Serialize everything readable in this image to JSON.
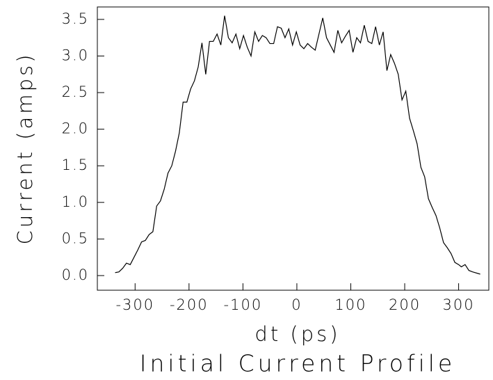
{
  "chart_data": {
    "type": "line",
    "title": "Initial Current Profile",
    "x_label": "dt (ps)",
    "y_label": "Current (amps)",
    "xlim": [
      -370,
      356
    ],
    "ylim": [
      -0.2,
      3.67
    ],
    "xticks": [
      -300,
      -200,
      -100,
      0,
      100,
      200,
      300
    ],
    "yticks": [
      {
        "value": 0,
        "label": "0.0"
      },
      {
        "value": 0.5,
        "label": "0.5"
      },
      {
        "value": 1,
        "label": "1.0"
      },
      {
        "value": 1.5,
        "label": "1.5"
      },
      {
        "value": 2,
        "label": "2.0"
      },
      {
        "value": 2.5,
        "label": "2.5"
      },
      {
        "value": 3,
        "label": "3.0"
      },
      {
        "value": 3.5,
        "label": "3.5"
      }
    ],
    "x": [
      -337,
      -330,
      -323,
      -316,
      -309,
      -302,
      -295,
      -288,
      -281,
      -274,
      -267,
      -260,
      -253,
      -246,
      -239,
      -232,
      -225,
      -218,
      -211,
      -204,
      -197,
      -190,
      -183,
      -176,
      -169,
      -162,
      -155,
      -148,
      -141,
      -134,
      -127,
      -120,
      -113,
      -106,
      -99,
      -92,
      -85,
      -78,
      -71,
      -64,
      -57,
      -50,
      -43,
      -36,
      -29,
      -22,
      -15,
      -8,
      -1,
      6,
      13,
      20,
      27,
      34,
      41,
      48,
      55,
      62,
      69,
      76,
      83,
      90,
      97,
      104,
      111,
      118,
      125,
      132,
      139,
      146,
      153,
      160,
      167,
      174,
      181,
      188,
      195,
      202,
      209,
      216,
      223,
      230,
      237,
      244,
      251,
      258,
      265,
      272,
      279,
      286,
      293,
      300,
      305,
      312,
      319,
      326,
      340
    ],
    "series": [
      {
        "name": "current",
        "color": "#000000",
        "values": [
          0.04,
          0.05,
          0.1,
          0.17,
          0.15,
          0.25,
          0.35,
          0.46,
          0.48,
          0.56,
          0.6,
          0.95,
          1.02,
          1.18,
          1.4,
          1.5,
          1.7,
          1.95,
          2.37,
          2.37,
          2.55,
          2.66,
          2.85,
          3.18,
          2.75,
          3.2,
          3.2,
          3.3,
          3.15,
          3.55,
          3.25,
          3.18,
          3.3,
          3.1,
          3.28,
          3.12,
          3.0,
          3.33,
          3.2,
          3.28,
          3.25,
          3.17,
          3.17,
          3.4,
          3.38,
          3.25,
          3.37,
          3.15,
          3.33,
          3.15,
          3.1,
          3.17,
          3.12,
          3.08,
          3.3,
          3.52,
          3.25,
          3.15,
          3.05,
          3.35,
          3.18,
          3.27,
          3.35,
          3.05,
          3.25,
          3.18,
          3.42,
          3.2,
          3.17,
          3.4,
          3.15,
          3.33,
          2.8,
          3.02,
          2.9,
          2.75,
          2.4,
          2.52,
          2.15,
          1.98,
          1.8,
          1.48,
          1.35,
          1.05,
          0.93,
          0.82,
          0.65,
          0.45,
          0.38,
          0.3,
          0.18,
          0.15,
          0.12,
          0.15,
          0.07,
          0.05,
          0.02
        ]
      }
    ]
  }
}
